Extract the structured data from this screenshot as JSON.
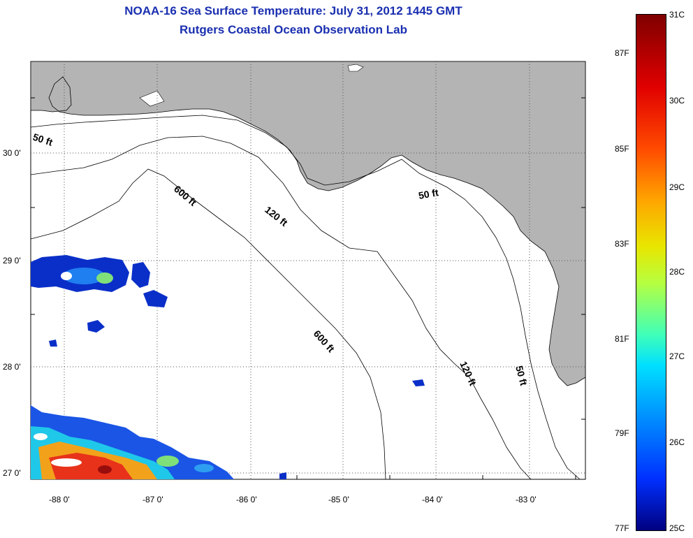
{
  "header": {
    "title_line1": "NOAA-16 Sea Surface Temperature:  July 31, 2012 1445 GMT",
    "title_line2": "Rutgers Coastal Ocean Observation Lab"
  },
  "map": {
    "lat_labels": [
      "30 0'",
      "29 0'",
      "28 0'",
      "27 0'"
    ],
    "lon_labels": [
      "-88 0'",
      "-87 0'",
      "-86 0'",
      "-85 0'",
      "-84 0'",
      "-83 0'"
    ],
    "contour_labels": {
      "c50_west": "50 ft",
      "c600_north": "600 ft",
      "c120_north": "120 ft",
      "c50_east": "50 ft",
      "c600_south": "600 ft",
      "c120_south": "120 ft",
      "c50_south": "50 ft"
    },
    "colors": {
      "land": "#b4b4b4",
      "ocean": "#ffffff",
      "grid": "#555555"
    }
  },
  "colorbar": {
    "celsius_labels": [
      "31C",
      "30C",
      "29C",
      "28C",
      "27C",
      "26C",
      "25C"
    ],
    "fahrenheit_labels": [
      "87F",
      "85F",
      "83F",
      "81F",
      "79F",
      "77F"
    ]
  }
}
